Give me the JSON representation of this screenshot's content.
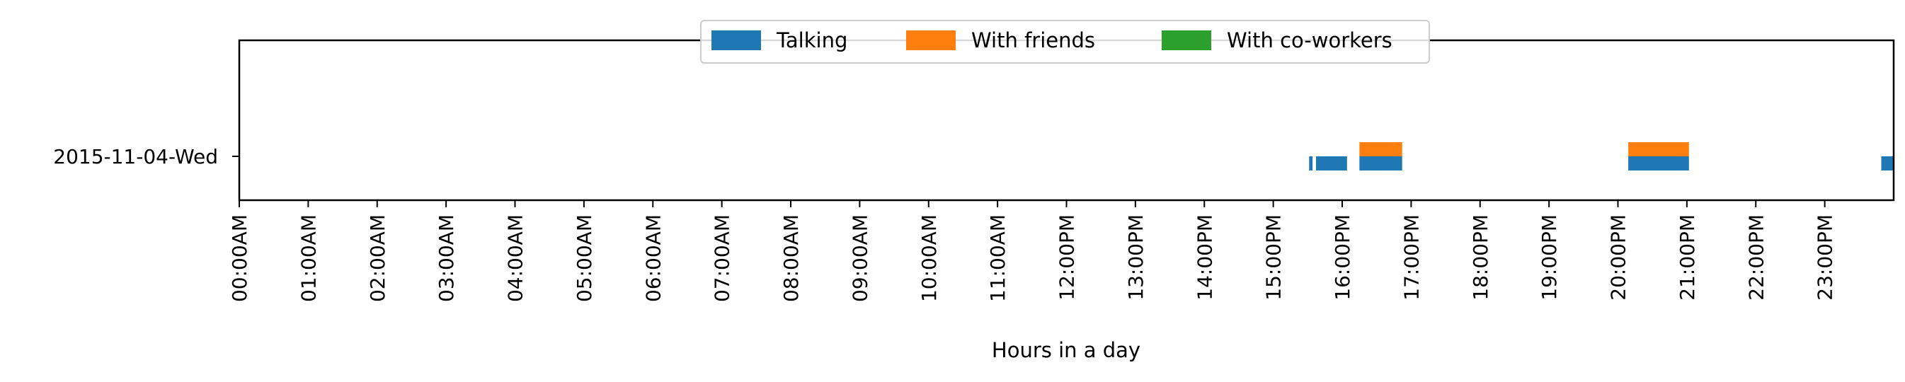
{
  "chart_data": {
    "type": "broken_barh",
    "title": "",
    "xlabel": "Hours in a day",
    "ylabel": "",
    "xlim": [
      0,
      24
    ],
    "categories": [
      "2015-11-04-Wed"
    ],
    "x_tick_labels": [
      "00:00AM",
      "01:00AM",
      "02:00AM",
      "03:00AM",
      "04:00AM",
      "05:00AM",
      "06:00AM",
      "07:00AM",
      "08:00AM",
      "09:00AM",
      "10:00AM",
      "11:00AM",
      "12:00PM",
      "13:00PM",
      "14:00PM",
      "15:00PM",
      "16:00PM",
      "17:00PM",
      "18:00PM",
      "19:00PM",
      "20:00PM",
      "21:00PM",
      "22:00PM",
      "23:00PM"
    ],
    "grid": false,
    "legend_position": "top-center",
    "series": [
      {
        "name": "Talking",
        "color": "#1f77b4",
        "intervals": [
          {
            "category": "2015-11-04-Wed",
            "start": 15.52,
            "end": 15.57
          },
          {
            "category": "2015-11-04-Wed",
            "start": 15.62,
            "end": 16.07
          },
          {
            "category": "2015-11-04-Wed",
            "start": 16.25,
            "end": 16.87
          },
          {
            "category": "2015-11-04-Wed",
            "start": 20.15,
            "end": 21.03
          },
          {
            "category": "2015-11-04-Wed",
            "start": 23.82,
            "end": 24.0
          }
        ]
      },
      {
        "name": "With friends",
        "color": "#ff7f0e",
        "intervals": [
          {
            "category": "2015-11-04-Wed",
            "start": 16.25,
            "end": 16.87
          },
          {
            "category": "2015-11-04-Wed",
            "start": 20.15,
            "end": 21.03
          }
        ]
      },
      {
        "name": "With co-workers",
        "color": "#2ca02c",
        "intervals": []
      }
    ]
  }
}
